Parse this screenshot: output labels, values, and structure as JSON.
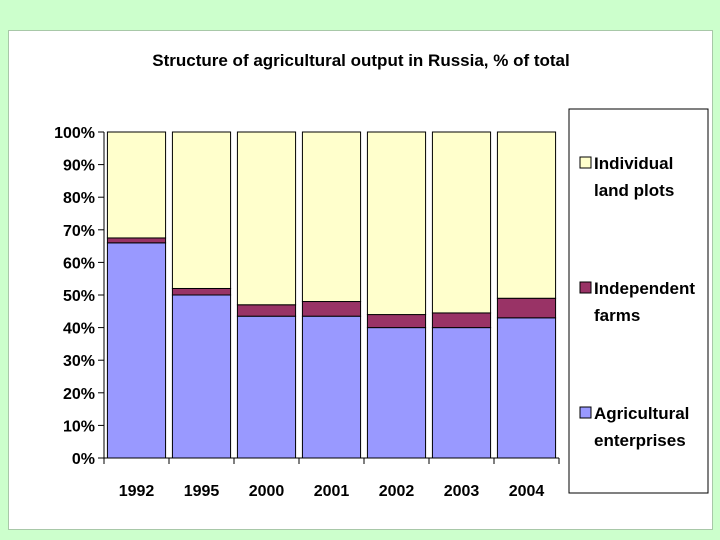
{
  "chart_data": {
    "type": "bar",
    "stacked": true,
    "percent": true,
    "title": "Structure of agricultural output in Russia, % of total",
    "categories": [
      "1992",
      "1995",
      "2000",
      "2001",
      "2002",
      "2003",
      "2004"
    ],
    "y_ticks": [
      "0%",
      "10%",
      "20%",
      "30%",
      "40%",
      "50%",
      "60%",
      "70%",
      "80%",
      "90%",
      "100%"
    ],
    "ylim": [
      0,
      100
    ],
    "grid": false,
    "legend_position": "right",
    "series": [
      {
        "name": "Agricultural enterprises",
        "legend_lines": [
          "Agricultural",
          "enterprises"
        ],
        "color": "#9999ff",
        "values": [
          66,
          50,
          43.5,
          43.5,
          40,
          40,
          43
        ]
      },
      {
        "name": "Independent farms",
        "legend_lines": [
          "Independent",
          "farms"
        ],
        "color": "#993366",
        "values": [
          1.5,
          2,
          3.5,
          4.5,
          4,
          4.5,
          6
        ]
      },
      {
        "name": "Individual land plots",
        "legend_lines": [
          "Individual",
          "land plots"
        ],
        "color": "#ffffcc",
        "values": [
          32.5,
          48,
          53,
          52,
          56,
          55.5,
          51
        ]
      }
    ]
  }
}
